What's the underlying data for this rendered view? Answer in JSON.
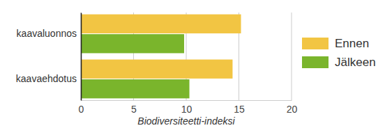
{
  "chart_data": {
    "type": "bar",
    "orientation": "horizontal",
    "categories": [
      "kaavaluonnos",
      "kaavaehdotus"
    ],
    "series": [
      {
        "name": "Ennen",
        "color": "#f2c543",
        "values": [
          15.2,
          14.4
        ]
      },
      {
        "name": "Jälkeen",
        "color": "#7ab52c",
        "values": [
          9.8,
          10.3
        ]
      }
    ],
    "xlabel": "Biodiversiteetti-indeksi",
    "xlim": [
      0,
      20
    ],
    "xticks": [
      0,
      5,
      10,
      15,
      20
    ],
    "grid": true,
    "legend": "right"
  }
}
